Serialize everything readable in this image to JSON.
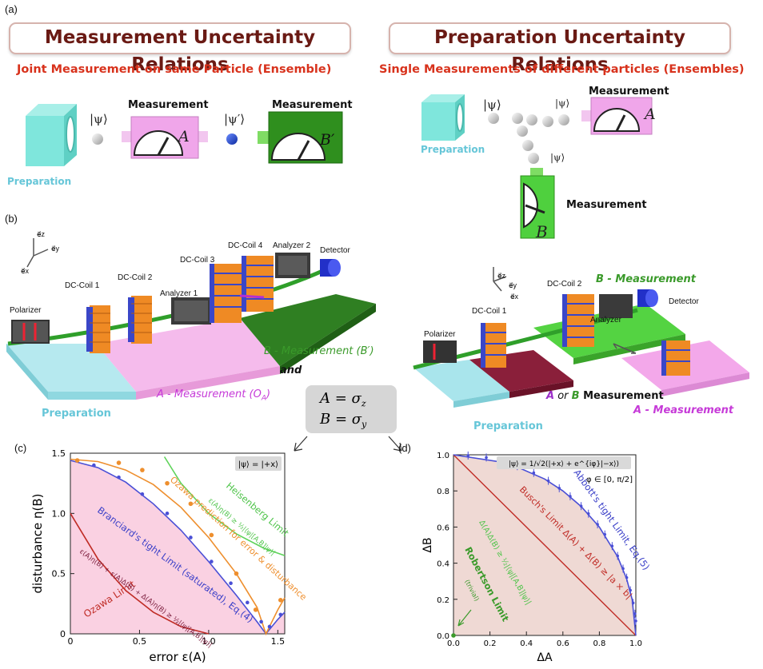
{
  "panels": {
    "a": "(a)",
    "b": "(b)",
    "c": "(c)",
    "d": "(d)"
  },
  "titles": {
    "measurement": "Measurement Uncertainty Relations",
    "preparation": "Preparation Uncertainty Relations"
  },
  "subtitles": {
    "joint": "Joint Measurement on same Particle (Ensemble)",
    "single": "Single Measurements of different particles (Ensembles)"
  },
  "panel_a": {
    "left": {
      "preparation": "Preparation",
      "psi": "|ψ⟩",
      "measurement1": "Measurement",
      "meter1": "A",
      "psi_prime": "|ψ′⟩",
      "measurement2": "Measurement",
      "meter2": "B′"
    },
    "right": {
      "preparation": "Preparation",
      "psi1": "|ψ⟩",
      "psi2": "|ψ⟩",
      "psi3": "|ψ⟩",
      "measurement_a": "Measurement",
      "meter_a": "A",
      "measurement_b": "Measurement",
      "meter_b": "B"
    }
  },
  "panel_b": {
    "axes": {
      "z": "e⃗z",
      "y": "e⃗y",
      "x": "e⃗x"
    },
    "left": {
      "polarizer": "Polarizer",
      "dc1": "DC-Coil 1",
      "dc2": "DC-Coil 2",
      "analyzer1": "Analyzer 1",
      "dc3": "DC-Coil 3",
      "dc4": "DC-Coil 4",
      "analyzer2": "Analyzer 2",
      "detector": "Detector",
      "b_measure": "B - Measurement (B′)",
      "and": "and",
      "a_measure": "A - Measurement (O",
      "a_measure_sub": "A",
      "a_measure_end": ")",
      "preparation": "Preparation"
    },
    "right": {
      "polarizer": "Polarizer",
      "dc1": "DC-Coil 1",
      "dc2": "DC-Coil 2",
      "analyzer": "Analyzer",
      "detector": "Detector",
      "b_measure": "B - Measurement",
      "a_or_b_a": "A",
      "a_or_b_or": " or ",
      "a_or_b_b": "B",
      "a_or_b_rest": " Measurement",
      "a_measure": "A - Measurement",
      "preparation": "Preparation"
    },
    "operators": {
      "a": "A = σ",
      "a_sub": "z",
      "b": "B = σ",
      "b_sub": "y"
    }
  },
  "colors": {
    "maroon": "#6a1a14",
    "red": "#d8321c",
    "cyan": "#66c6d8",
    "pink": "#f0a6dc",
    "green": "#3a9a2a",
    "orange": "#ee8f2e",
    "blue": "#4a4fd6",
    "darkred": "#c02c26",
    "lightgreen": "#5fd35a",
    "purple": "#9b2ec9"
  },
  "chart_data": [
    {
      "type": "line",
      "panel": "c",
      "xlabel": "error ε(A)",
      "ylabel": "disturbance η(B)",
      "xlim": [
        0,
        1.55
      ],
      "ylim": [
        0,
        1.5
      ],
      "xticks": [
        "0",
        "0.5",
        "1.0",
        "1.5"
      ],
      "yticks": [
        "0",
        "0.5",
        "1.0",
        "1.5"
      ],
      "state_label": "|ψ⟩ = |+x⟩",
      "series": [
        {
          "name": "Ozawa Limit",
          "color": "#c02c26",
          "x": [
            0,
            0.2,
            0.4,
            0.6,
            0.8,
            1.0
          ],
          "y": [
            1.0,
            0.62,
            0.36,
            0.18,
            0.06,
            0.0
          ]
        },
        {
          "name": "Branciard's tight Limit (saturated), Eq.(4)",
          "color": "#4a4fd6",
          "x": [
            0,
            0.2,
            0.4,
            0.6,
            0.8,
            1.0,
            1.2,
            1.35,
            1.414,
            1.5,
            1.55
          ],
          "y": [
            1.44,
            1.38,
            1.26,
            1.08,
            0.86,
            0.6,
            0.32,
            0.1,
            0.0,
            0.12,
            0.18
          ]
        },
        {
          "name": "Ozawa prediction for error & disturbance",
          "color": "#ee8f2e",
          "x": [
            0,
            0.2,
            0.4,
            0.6,
            0.8,
            1.0,
            1.2,
            1.35,
            1.414,
            1.5,
            1.55
          ],
          "y": [
            1.45,
            1.43,
            1.36,
            1.24,
            1.05,
            0.8,
            0.5,
            0.22,
            0.0,
            0.2,
            0.3
          ]
        },
        {
          "name": "Heisenberg Limit",
          "color": "#5fd35a",
          "x": [
            0.68,
            0.8,
            1.0,
            1.2,
            1.4,
            1.55
          ],
          "y": [
            1.47,
            1.25,
            1.0,
            0.83,
            0.71,
            0.65
          ]
        }
      ],
      "markers": {
        "branciard": {
          "x": [
            0.05,
            0.17,
            0.35,
            0.52,
            0.7,
            0.87,
            1.02,
            1.16,
            1.28,
            1.38,
            1.44,
            1.52
          ],
          "y": [
            1.44,
            1.4,
            1.3,
            1.16,
            1.0,
            0.8,
            0.6,
            0.42,
            0.26,
            0.1,
            0.06,
            0.16
          ]
        },
        "ozawa_pred": {
          "x": [
            0.05,
            0.35,
            0.52,
            0.7,
            0.87,
            1.02,
            1.2,
            1.34,
            1.52
          ],
          "y": [
            1.44,
            1.42,
            1.36,
            1.25,
            1.08,
            0.82,
            0.5,
            0.2,
            0.28
          ]
        }
      },
      "annotations": {
        "ozawa_limit": "Ozawa Limit",
        "ozawa_formula": "ε(A)η(B) + ε(A)Δ(B) + Δ(A)η(B) ≥ ½|⟨ψ|[A,B]|ψ⟩|",
        "branciard": "Branciard's tight Limit (saturated), Eq.(4)",
        "ozawa_pred": "Ozawa prediction for error & disturbance",
        "heisenberg": "Heisenberg Limit",
        "heisenberg_formula": "ε(A)η(B) ≥ ½|⟨ψ|[A,B]|ψ⟩|"
      }
    },
    {
      "type": "line",
      "panel": "d",
      "xlabel": "ΔA",
      "ylabel": "ΔB",
      "xlim": [
        0,
        1.0
      ],
      "ylim": [
        0,
        1.0
      ],
      "xticks": [
        "0.0",
        "0.2",
        "0.4",
        "0.6",
        "0.8",
        "1.0"
      ],
      "yticks": [
        "0.0",
        "0.2",
        "0.4",
        "0.6",
        "0.8",
        "1.0"
      ],
      "state_label": "|ψ⟩ = 1/√2(|+x⟩ + e^{iφ}|−x⟩)",
      "phi_label": "φ ∈ [0, π/2]",
      "series": [
        {
          "name": "Busch's Limit",
          "color": "#c02c26",
          "x": [
            0,
            1.0
          ],
          "y": [
            1.0,
            0.0
          ]
        },
        {
          "name": "Abbott's tight Limit, Eq.(5)",
          "color": "#4a4fd6",
          "x": [
            0,
            0.3,
            0.5,
            0.6,
            0.7,
            0.8,
            0.9,
            0.95,
            0.98,
            1.0
          ],
          "y": [
            1.0,
            0.954,
            0.866,
            0.8,
            0.714,
            0.6,
            0.436,
            0.312,
            0.199,
            0.0
          ]
        }
      ],
      "markers": {
        "abbott": {
          "x": [
            0.08,
            0.18,
            0.27,
            0.35,
            0.44,
            0.52,
            0.58,
            0.64,
            0.7,
            0.74,
            0.79,
            0.83,
            0.87,
            0.9,
            0.93,
            0.95,
            0.97,
            0.985,
            0.995,
            1.0
          ],
          "y": [
            0.996,
            0.985,
            0.962,
            0.937,
            0.9,
            0.856,
            0.815,
            0.77,
            0.716,
            0.674,
            0.615,
            0.559,
            0.495,
            0.44,
            0.37,
            0.32,
            0.25,
            0.18,
            0.12,
            0.08
          ]
        }
      },
      "annotations": {
        "busch": "Busch's Limit  Δ(A) + Δ(B) ≥ |a × b|",
        "abbott": "Abbott's tight Limit, Eq.(5)",
        "robertson_formula": "Δ(A)Δ(B) ≥ ½|⟨ψ|[A,B]|ψ⟩|",
        "robertson": "Robertson Limit",
        "trivial": "(trivial)"
      }
    }
  ]
}
